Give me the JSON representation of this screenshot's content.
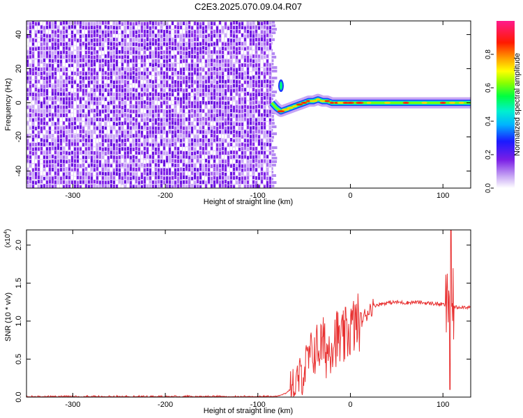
{
  "title": "C2E3.2025.070.09.04.R07",
  "chart_data": [
    {
      "type": "heatmap",
      "xlabel": "Height of straight line (km)",
      "ylabel": "Frequency (Hz)",
      "xlim": [
        -350,
        130
      ],
      "ylim": [
        -50,
        48
      ],
      "xticks": [
        -300,
        -200,
        -100,
        0,
        100
      ],
      "yticks": [
        -40,
        -20,
        0,
        20,
        40
      ],
      "noise_region_x": [
        -350,
        -85
      ],
      "signal_ridge": {
        "x": [
          -85,
          -80,
          -75,
          -70,
          -65,
          -60,
          -55,
          -50,
          -45,
          -40,
          -35,
          -30,
          -25,
          -20,
          -15,
          -10,
          -5,
          0,
          10,
          20,
          40,
          60,
          80,
          100,
          110,
          120,
          130
        ],
        "y": [
          0,
          -3,
          -5,
          -4,
          -3,
          -2,
          -1,
          0,
          1,
          1,
          2,
          1,
          1,
          0,
          0,
          0,
          0,
          0,
          0,
          0,
          0,
          0,
          0,
          0,
          0,
          0,
          0
        ]
      },
      "colorbar": {
        "label": "Normalized spectral amplitude",
        "range": [
          0.0,
          1.0
        ],
        "ticks": [
          "0.0",
          "0.2",
          "0.4",
          "0.6",
          "0.8"
        ]
      }
    },
    {
      "type": "line",
      "xlabel": "Height of straight line (km)",
      "ylabel": "SNR (10 * v/v)",
      "multiplier": "(x10",
      "multiplier_exp": "4",
      "xlim": [
        -350,
        130
      ],
      "ylim": [
        0.0,
        2.2
      ],
      "xticks": [
        -300,
        -200,
        -100,
        0,
        100
      ],
      "yticks": [
        "0.0",
        "0.5",
        "1.0",
        "1.5",
        "2.0"
      ],
      "color": "#e83030",
      "series": [
        {
          "x": [
            -350,
            -300,
            -250,
            -200,
            -150,
            -100,
            -80,
            -70,
            -60,
            -55,
            -50,
            -45,
            -40,
            -35,
            -30,
            -25,
            -20,
            -15,
            -10,
            -5,
            0,
            5,
            10,
            15,
            20,
            25,
            30,
            40,
            50,
            60,
            70,
            80,
            90,
            100,
            105,
            108,
            110,
            115,
            120,
            130
          ],
          "y": [
            0.0,
            0.0,
            0.0,
            0.0,
            0.0,
            0.0,
            0.01,
            0.05,
            0.15,
            0.25,
            0.35,
            0.5,
            0.6,
            0.65,
            0.7,
            0.6,
            0.75,
            0.8,
            0.7,
            0.8,
            0.9,
            0.95,
            1.0,
            1.05,
            1.15,
            1.2,
            1.22,
            1.24,
            1.25,
            1.24,
            1.25,
            1.24,
            1.23,
            1.22,
            1.2,
            1.6,
            1.2,
            1.18,
            1.19,
            1.18
          ]
        }
      ]
    }
  ]
}
